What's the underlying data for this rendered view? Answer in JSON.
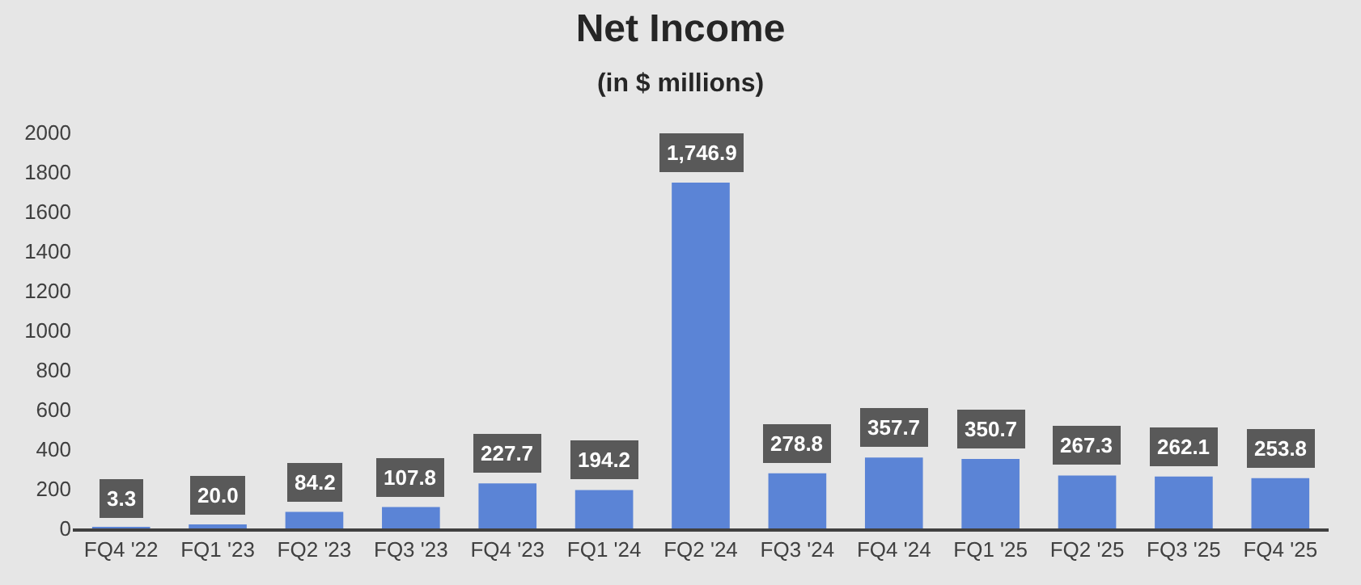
{
  "chart_data": {
    "type": "bar",
    "title": "Net Income",
    "subtitle": "(in $ millions)",
    "categories": [
      "FQ4 '22",
      "FQ1 '23",
      "FQ2 '23",
      "FQ3 '23",
      "FQ4 '23",
      "FQ1 '24",
      "FQ2 '24",
      "FQ3 '24",
      "FQ4 '24",
      "FQ1 '25",
      "FQ2 '25",
      "FQ3 '25",
      "FQ4 '25"
    ],
    "values": [
      3.3,
      20.0,
      84.2,
      107.8,
      227.7,
      194.2,
      1746.9,
      278.8,
      357.7,
      350.7,
      267.3,
      262.1,
      253.8
    ],
    "value_labels": [
      "3.3",
      "20.0",
      "84.2",
      "107.8",
      "227.7",
      "194.2",
      "1,746.9",
      "278.8",
      "357.7",
      "350.7",
      "267.3",
      "262.1",
      "253.8"
    ],
    "color": "#5b84d6",
    "ylim": [
      0,
      2000
    ],
    "yticks": [
      0,
      200,
      400,
      600,
      800,
      1000,
      1200,
      1400,
      1600,
      1800,
      2000
    ],
    "grid": false,
    "legend": false
  }
}
